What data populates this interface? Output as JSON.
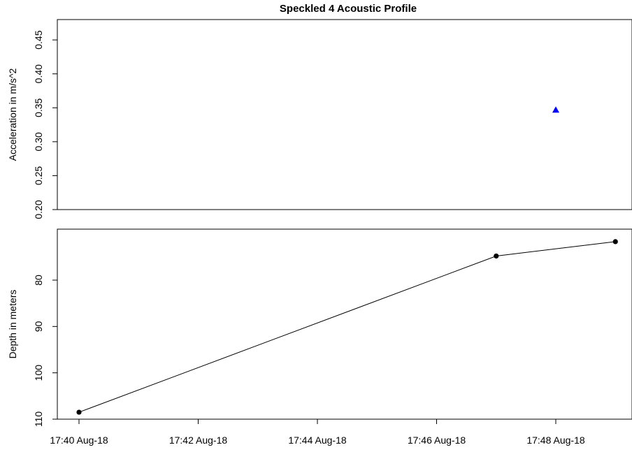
{
  "chart_data": [
    {
      "type": "scatter",
      "title": "Speckled 4 Acoustic Profile",
      "xlabel": "",
      "ylabel": "Acceleration in m/s^2",
      "ylim": [
        0.2,
        0.48
      ],
      "yticks": [
        0.2,
        0.25,
        0.3,
        0.35,
        0.4,
        0.45
      ],
      "ytick_labels": [
        "0.20",
        "0.25",
        "0.30",
        "0.35",
        "0.40",
        "0.45"
      ],
      "marker": "triangle",
      "color": "#0000ff",
      "series": [
        {
          "x": [
            "17:48 Aug-18"
          ],
          "y": [
            0.347
          ]
        }
      ]
    },
    {
      "type": "line",
      "title": "",
      "xlabel": "",
      "ylabel": "Depth in meters",
      "ylim": [
        110,
        69
      ],
      "y_inverted": true,
      "yticks": [
        80,
        90,
        100,
        110
      ],
      "ytick_labels": [
        "80",
        "90",
        "100",
        "110"
      ],
      "marker": "circle",
      "color": "#000000",
      "series": [
        {
          "x": [
            "17:40 Aug-18",
            "17:47 Aug-18",
            "17:49 Aug-18"
          ],
          "y": [
            108.5,
            74.8,
            71.7
          ]
        }
      ]
    }
  ],
  "x_axis": {
    "ticks": [
      "17:40 Aug-18",
      "17:42 Aug-18",
      "17:44 Aug-18",
      "17:46 Aug-18",
      "17:48 Aug-18"
    ],
    "range": [
      "17:39 Aug-18",
      "17:49 Aug-18"
    ]
  }
}
